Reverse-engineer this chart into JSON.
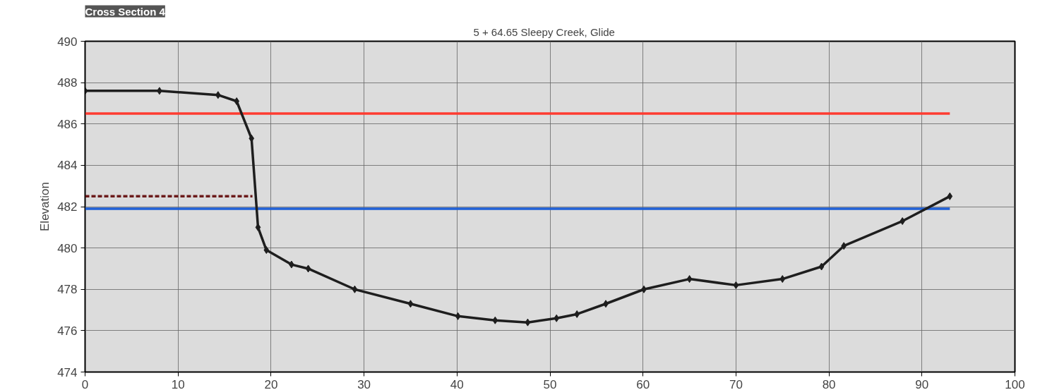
{
  "chart_data": {
    "type": "line",
    "title": "Cross Section 4",
    "subtitle": "5 + 64.65    Sleepy Creek,  Glide",
    "ylabel": "Elevation",
    "xlim": [
      0,
      100
    ],
    "xticks": [
      0,
      10,
      20,
      30,
      40,
      50,
      60,
      70,
      80,
      90,
      100
    ],
    "ylim": [
      474,
      490
    ],
    "yticks": [
      474,
      476,
      478,
      480,
      482,
      484,
      486,
      488,
      490
    ],
    "grid": true,
    "series": [
      {
        "color": "#ff3b30",
        "line_style": "solid",
        "marker": "none",
        "x": [
          0,
          93
        ],
        "values": [
          486.5,
          486.5
        ]
      },
      {
        "color": "#1f5fd6",
        "line_style": "solid",
        "marker": "none",
        "x": [
          0,
          93
        ],
        "values": [
          481.9,
          481.9
        ]
      },
      {
        "color": "#6b1a1a",
        "line_style": "dashed",
        "marker": "none",
        "x": [
          0,
          18
        ],
        "values": [
          482.5,
          482.5
        ]
      },
      {
        "color": "#1e1e1e",
        "line_style": "solid",
        "marker": "diamond",
        "x": [
          0,
          8,
          14.3,
          16.3,
          17.9,
          18.6,
          19.5,
          22.2,
          24,
          29,
          35,
          40.1,
          44.1,
          47.6,
          50.7,
          52.9,
          56,
          60.1,
          65,
          70,
          75,
          79.2,
          81.6,
          87.9,
          93
        ],
        "values": [
          487.6,
          487.6,
          487.4,
          487.1,
          485.3,
          481.0,
          479.9,
          479.2,
          479.0,
          478.0,
          477.3,
          476.7,
          476.5,
          476.4,
          476.6,
          476.8,
          477.3,
          478.0,
          478.5,
          478.2,
          478.5,
          479.1,
          480.1,
          481.3,
          482.5
        ]
      }
    ]
  }
}
